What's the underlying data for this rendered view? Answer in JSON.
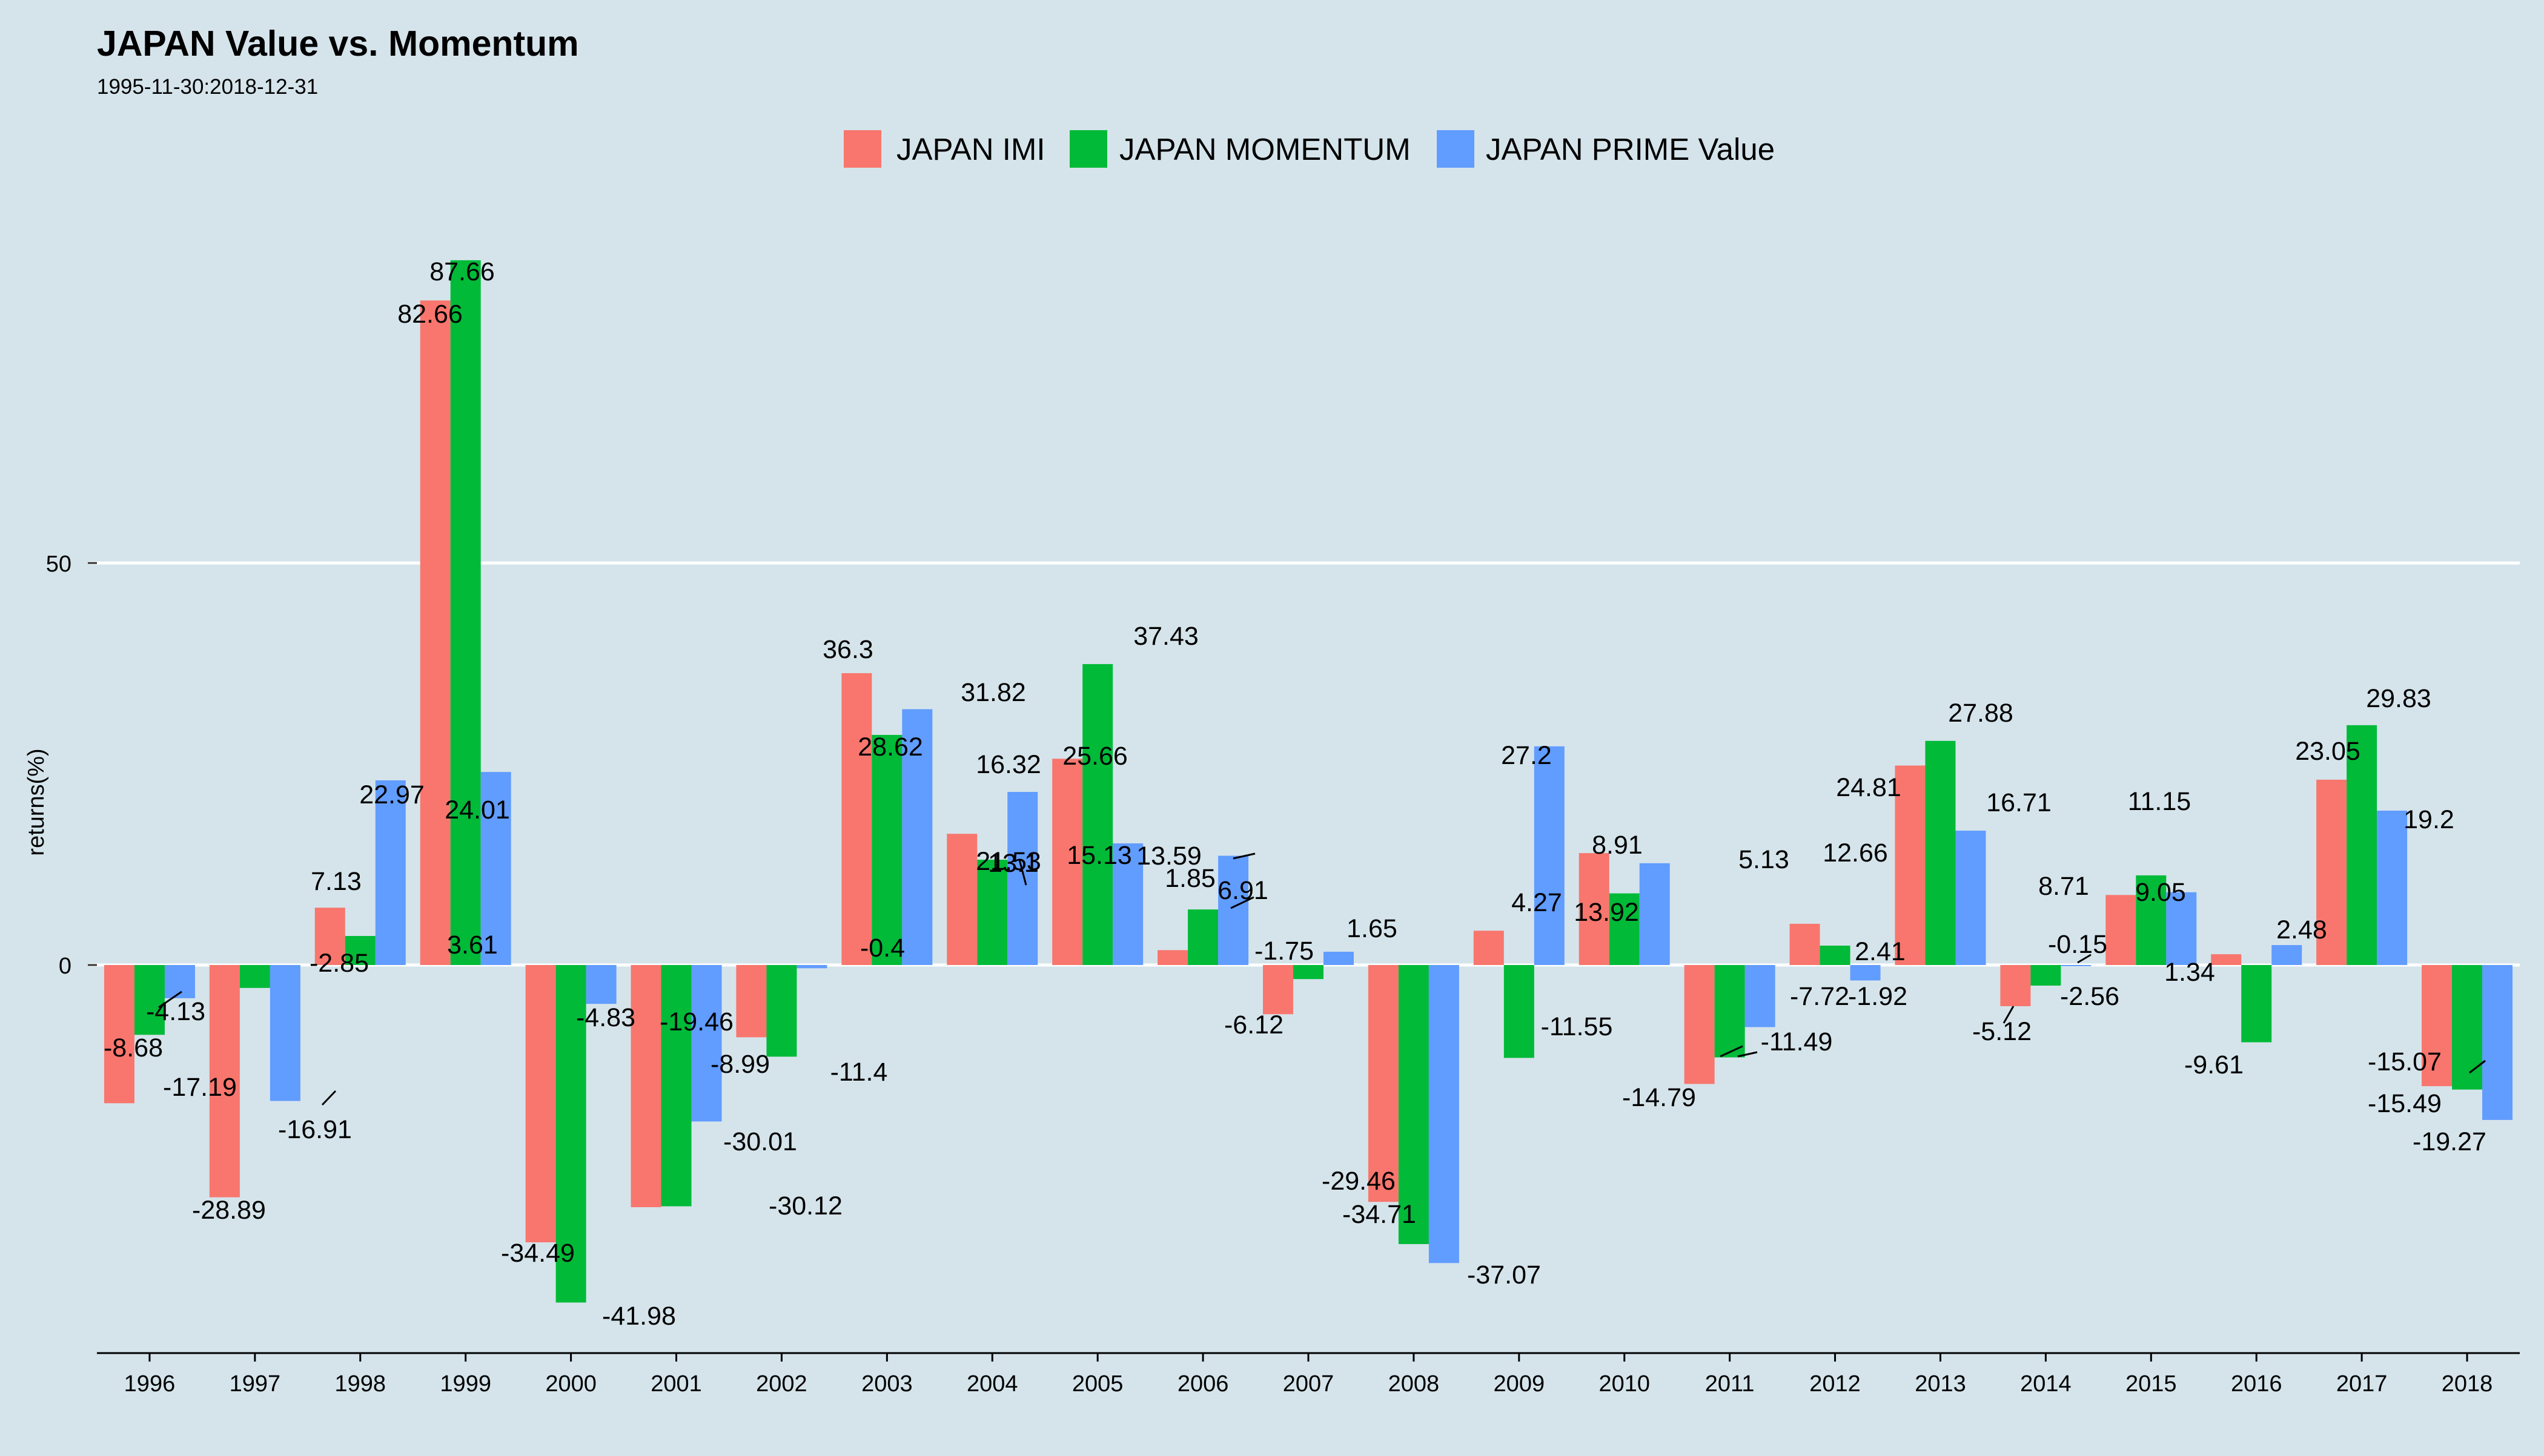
{
  "chart_data": {
    "type": "bar",
    "title": "JAPAN Value vs. Momentum",
    "subtitle": "1995-11-30:2018-12-31",
    "xlabel": "",
    "ylabel": "returns(%)",
    "ylim": [
      -48,
      98
    ],
    "yticks": [
      0,
      50
    ],
    "grid": "horizontal major lines",
    "legend_position": "top",
    "categories": [
      "1996",
      "1997",
      "1998",
      "1999",
      "2000",
      "2001",
      "2002",
      "2003",
      "2004",
      "2005",
      "2006",
      "2007",
      "2008",
      "2009",
      "2010",
      "2011",
      "2012",
      "2013",
      "2014",
      "2015",
      "2016",
      "2017",
      "2018"
    ],
    "series": [
      {
        "name": "JAPAN IMI",
        "color": "#f8766d",
        "values": [
          -17.19,
          -28.89,
          7.13,
          82.66,
          -34.49,
          -30.12,
          -8.99,
          36.3,
          16.32,
          25.66,
          1.85,
          -6.12,
          -29.46,
          4.27,
          13.92,
          -14.79,
          5.13,
          24.81,
          -5.12,
          8.71,
          1.34,
          23.05,
          -15.07
        ],
        "labels": [
          "-17.19",
          "-28.89",
          "7.13",
          "82.66",
          "-34.49",
          "-30.12",
          "",
          "36.3",
          "16.32",
          "25.66",
          "1.85",
          "-6.12",
          "-29.46",
          "4.27",
          "13.92",
          "-14.79",
          "5.13",
          "24.81",
          "-5.12",
          "8.71",
          "1.34",
          "23.05",
          "-15.07"
        ]
      },
      {
        "name": "JAPAN MOMENTUM",
        "color": "#00ba38",
        "values": [
          -8.68,
          -2.85,
          3.61,
          87.66,
          -41.98,
          -30.01,
          -11.4,
          28.62,
          13.1,
          37.43,
          6.91,
          -1.75,
          -34.71,
          -11.55,
          8.91,
          -11.49,
          2.41,
          27.88,
          -2.56,
          11.15,
          -9.61,
          29.83,
          -15.49
        ],
        "labels": [
          "-8.68",
          "-2.85",
          "3.61",
          "87.66",
          "-41.98",
          "-30.01",
          "-11.4",
          "28.62",
          "13.1",
          "37.43",
          "6.91",
          "-1.75",
          "-34.71",
          "-11.55",
          "8.91",
          "-11.49",
          "2.41",
          "27.88",
          "-2.56",
          "11.15",
          "-9.61",
          "29.83",
          "-15.49"
        ]
      },
      {
        "name": "JAPAN PRIME Value",
        "color": "#619cff",
        "values": [
          -4.13,
          -16.91,
          22.97,
          24.01,
          -4.83,
          -19.46,
          -0.4,
          31.82,
          21.53,
          15.13,
          13.59,
          1.65,
          -37.07,
          27.2,
          12.66,
          -7.72,
          -1.92,
          16.71,
          -0.15,
          9.05,
          2.48,
          19.2,
          -19.27
        ],
        "labels": [
          "-4.13",
          "-16.91",
          "22.97",
          "24.01",
          "-4.83",
          "-19.46",
          "-0.4",
          "31.82",
          "21.53",
          "15.13",
          "13.59",
          "1.65",
          "-37.07",
          "27.2",
          "12.66",
          "-7.72",
          "-1.92",
          "16.71",
          "-0.15",
          "9.05",
          "2.48",
          "19.2",
          "-19.27"
        ]
      }
    ],
    "extra_labels": [
      "-8.99"
    ]
  }
}
